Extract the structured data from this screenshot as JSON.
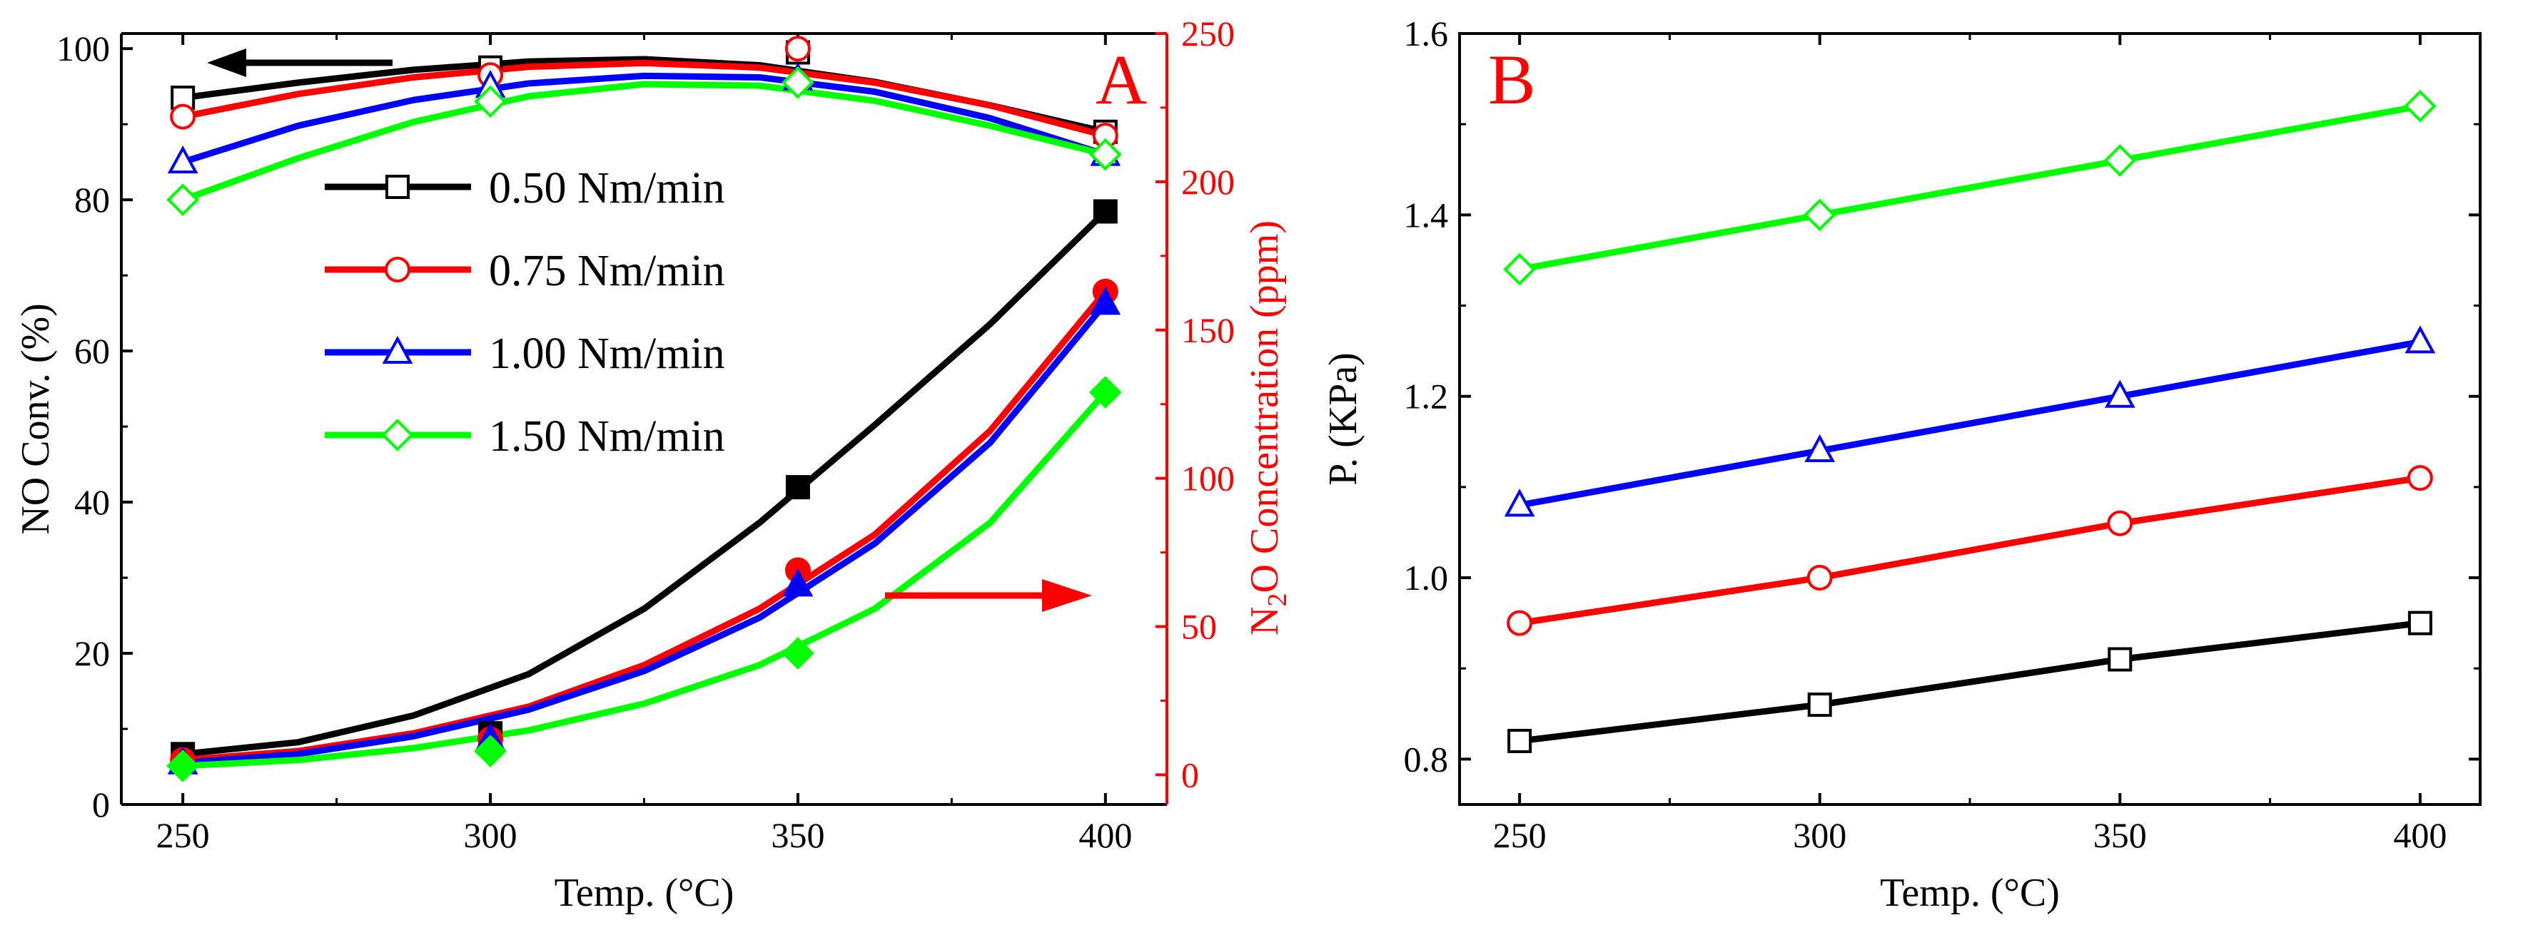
{
  "colors": {
    "black": "#000000",
    "red": "#ff0000",
    "blue": "#0000ff",
    "green": "#00ff00"
  },
  "chart_data": [
    {
      "type": "line",
      "panel_label": "A",
      "xlabel": "Temp. (°C)",
      "ylabel_left": "NO Conv. (%)",
      "ylabel_right_parts": [
        "N",
        "2",
        "O Concentration (ppm)"
      ],
      "x_ticks": [
        "250",
        "300",
        "350",
        "400"
      ],
      "y_left_ticks": [
        "0",
        "20",
        "40",
        "60",
        "80",
        "100"
      ],
      "y_right_ticks": [
        "0",
        "50",
        "100",
        "150",
        "200",
        "250"
      ],
      "xlim": [
        240,
        410
      ],
      "ylim_left": [
        0,
        102
      ],
      "ylim_right": [
        -10,
        250
      ],
      "x": [
        250,
        300,
        350,
        400
      ],
      "series": [
        {
          "name": "0.50 Nm/min",
          "color": "black",
          "marker": "square",
          "no_conversion": [
            93.5,
            97.5,
            99.5,
            89
          ],
          "n2o_ppm": [
            7,
            14,
            97,
            190
          ],
          "no_fit": [
            93.5,
            95.5,
            97.2,
            98.3,
            98.6,
            97.8,
            95.6,
            92.5,
            89
          ],
          "n2o_fit": [
            7,
            11,
            20,
            34,
            56,
            85,
            118,
            152,
            190
          ]
        },
        {
          "name": "0.75 Nm/min",
          "color": "red",
          "marker": "circle",
          "no_conversion": [
            91,
            96.5,
            100,
            88.5
          ],
          "n2o_ppm": [
            5,
            12,
            69,
            163
          ],
          "no_fit": [
            91,
            94,
            96.2,
            97.6,
            98.1,
            97.5,
            95.5,
            92.5,
            88.5
          ],
          "n2o_fit": [
            5,
            8,
            14,
            23,
            37,
            56,
            81,
            116,
            163
          ]
        },
        {
          "name": "1.00 Nm/min",
          "color": "blue",
          "marker": "triangle",
          "no_conversion": [
            85,
            95,
            96,
            86
          ],
          "n2o_ppm": [
            4,
            12,
            64,
            159
          ],
          "no_fit": [
            85,
            89.8,
            93.2,
            95.4,
            96.4,
            96.2,
            94.3,
            90.8,
            86
          ],
          "n2o_fit": [
            4,
            7,
            13,
            22,
            35,
            53,
            78,
            112,
            159
          ]
        },
        {
          "name": "1.50 Nm/min",
          "color": "green",
          "marker": "diamond",
          "no_conversion": [
            80,
            93,
            95.5,
            86
          ],
          "n2o_ppm": [
            3,
            8,
            41,
            129
          ],
          "no_fit": [
            80,
            85.5,
            90.3,
            93.7,
            95.3,
            95.1,
            93.1,
            89.8,
            86
          ],
          "n2o_fit": [
            3,
            5,
            9,
            15,
            24,
            37,
            56,
            85,
            129
          ]
        }
      ],
      "fit_x": [
        250,
        268.75,
        287.5,
        306.25,
        325,
        343.75,
        362.5,
        381.25,
        400
      ],
      "legend": [
        "0.50 Nm/min",
        "0.75 Nm/min",
        "1.00 Nm/min",
        "1.50 Nm/min"
      ]
    },
    {
      "type": "line",
      "panel_label": "B",
      "xlabel": "Temp. (°C)",
      "ylabel": "P. (KPa)",
      "x_ticks": [
        "250",
        "300",
        "350",
        "400"
      ],
      "y_ticks": [
        "0.8",
        "1.0",
        "1.2",
        "1.4",
        "1.6"
      ],
      "xlim": [
        240,
        410
      ],
      "ylim": [
        0.75,
        1.6
      ],
      "x": [
        250,
        300,
        350,
        400
      ],
      "series": [
        {
          "name": "0.50 Nm/min",
          "color": "black",
          "marker": "square",
          "values": [
            0.82,
            0.86,
            0.91,
            0.95
          ]
        },
        {
          "name": "0.75 Nm/min",
          "color": "red",
          "marker": "circle",
          "values": [
            0.95,
            1.0,
            1.06,
            1.11
          ]
        },
        {
          "name": "1.00 Nm/min",
          "color": "blue",
          "marker": "triangle",
          "values": [
            1.08,
            1.14,
            1.2,
            1.26
          ]
        },
        {
          "name": "1.50 Nm/min",
          "color": "green",
          "marker": "diamond",
          "values": [
            1.34,
            1.4,
            1.46,
            1.52
          ]
        }
      ]
    }
  ]
}
